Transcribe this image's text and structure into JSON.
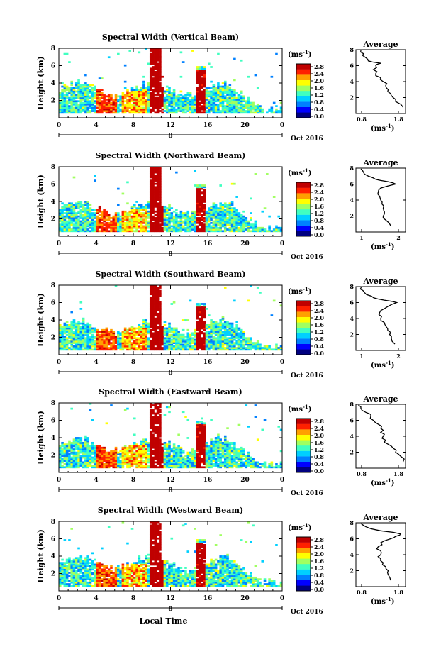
{
  "figure": {
    "xlabel": "Local Time",
    "colorbar_unit": "(ms",
    "colorbar_unit_sup": "-1",
    "colorbar_unit_close": ")",
    "colorbar_ticks": [
      "2.8",
      "2.4",
      "2.0",
      "1.6",
      "1.2",
      "0.8",
      "0.4",
      "0.0"
    ],
    "x_ticks": [
      "0",
      "4",
      "8",
      "12",
      "16",
      "20",
      "0"
    ],
    "date_day": "8",
    "date_label": "Oct 2016",
    "avg_unit": "(ms",
    "avg_unit_sup": "-1",
    "avg_unit_close": ")",
    "y_ticks": [
      "2",
      "4",
      "6",
      "8"
    ],
    "avg_y_ticks": [
      "2",
      "4",
      "6",
      "8"
    ]
  },
  "colors": {
    "colormap": [
      "#000080",
      "#0000ff",
      "#0080ff",
      "#00d0ff",
      "#40ffc0",
      "#a0ff60",
      "#ffff00",
      "#ffa000",
      "#ff2000",
      "#c00000"
    ],
    "line": "#000000"
  },
  "panels": [
    {
      "title": "Spectral Width (Vertical Beam)",
      "ylabel": "Height (km)",
      "avg_title": "Average",
      "avg_xticks": [
        "0.8",
        "1.8"
      ],
      "avg_xrange": [
        0.8,
        1.8
      ]
    },
    {
      "title": "Spectral Width (Northward Beam)",
      "ylabel": "Height (km)",
      "avg_title": "Average",
      "avg_xticks": [
        "1",
        "2"
      ],
      "avg_xrange": [
        0.6,
        2.6
      ]
    },
    {
      "title": "Spectral Width (Southward Beam)",
      "ylabel": "Height (km)",
      "avg_title": "Average",
      "avg_xticks": [
        "1",
        "2"
      ],
      "avg_xrange": [
        0.8,
        2.2
      ]
    },
    {
      "title": "Spectral Width (Eastward Beam)",
      "ylabel": "Height (km)",
      "avg_title": "Average",
      "avg_xticks": [
        "0.8",
        "1.8"
      ],
      "avg_xrange": [
        0.8,
        1.8
      ]
    },
    {
      "title": "Spectral Width (Westward Beam)",
      "ylabel": "Height (km)",
      "avg_title": "Average",
      "avg_xticks": [
        "0.8",
        "1.8"
      ],
      "avg_xrange": [
        0.8,
        1.8
      ]
    }
  ],
  "chart_data": [
    {
      "type": "heatmap",
      "title": "Spectral Width (Vertical Beam)",
      "xlabel": "",
      "ylabel": "Height (km)",
      "xlim": [
        0,
        24
      ],
      "ylim": [
        0,
        8
      ],
      "clim": [
        0.0,
        2.8
      ],
      "colorbar_label": "(ms-1)",
      "avg_profile": {
        "title": "Average",
        "xlim": [
          0.8,
          1.8
        ],
        "ylim": [
          0,
          8
        ],
        "height": [
          0.8,
          1.5,
          2,
          2.5,
          3,
          3.5,
          4,
          4.5,
          5,
          5.5,
          6,
          6.3,
          6.6,
          7,
          7.5,
          7.9
        ],
        "value": [
          1.75,
          1.6,
          1.55,
          1.5,
          1.45,
          1.4,
          1.35,
          1.3,
          1.2,
          1.15,
          1.2,
          1.3,
          1.05,
          1.0,
          0.95,
          0.9
        ]
      }
    },
    {
      "type": "heatmap",
      "title": "Spectral Width (Northward Beam)",
      "xlabel": "",
      "ylabel": "Height (km)",
      "xlim": [
        0,
        24
      ],
      "ylim": [
        0,
        8
      ],
      "clim": [
        0.0,
        2.8
      ],
      "colorbar_label": "(ms-1)",
      "avg_profile": {
        "title": "Average",
        "xlim": [
          0.6,
          2.6
        ],
        "ylim": [
          0,
          8
        ],
        "height": [
          0.8,
          1.5,
          2,
          2.5,
          3,
          3.5,
          4,
          4.5,
          5,
          5.5,
          6,
          6.3,
          6.6,
          7,
          7.5,
          7.9
        ],
        "value": [
          2.0,
          1.8,
          1.7,
          1.75,
          1.7,
          1.65,
          1.6,
          1.55,
          1.5,
          1.6,
          2.2,
          1.9,
          1.4,
          1.1,
          0.9,
          0.8
        ]
      }
    },
    {
      "type": "heatmap",
      "title": "Spectral Width (Southward Beam)",
      "xlabel": "",
      "ylabel": "Height (km)",
      "xlim": [
        0,
        24
      ],
      "ylim": [
        0,
        8
      ],
      "clim": [
        0.0,
        2.8
      ],
      "colorbar_label": "(ms-1)",
      "avg_profile": {
        "title": "Average",
        "xlim": [
          0.8,
          2.2
        ],
        "ylim": [
          0,
          8
        ],
        "height": [
          0.8,
          1.5,
          2,
          2.5,
          3,
          3.5,
          4,
          4.5,
          5,
          5.5,
          6,
          6.3,
          6.6,
          7,
          7.5,
          7.9
        ],
        "value": [
          1.9,
          1.8,
          1.75,
          1.7,
          1.65,
          1.6,
          1.5,
          1.45,
          1.5,
          1.7,
          1.95,
          1.6,
          1.3,
          1.1,
          1.0,
          0.95
        ]
      }
    },
    {
      "type": "heatmap",
      "title": "Spectral Width (Eastward Beam)",
      "xlabel": "",
      "ylabel": "Height (km)",
      "xlim": [
        0,
        24
      ],
      "ylim": [
        0,
        8
      ],
      "clim": [
        0.0,
        2.8
      ],
      "colorbar_label": "(ms-1)",
      "avg_profile": {
        "title": "Average",
        "xlim": [
          0.8,
          1.8
        ],
        "ylim": [
          0,
          8
        ],
        "height": [
          0.8,
          1.5,
          2,
          2.5,
          3,
          3.5,
          4,
          4.5,
          5,
          5.5,
          6,
          6.5,
          7,
          7.5,
          7.9
        ],
        "value": [
          1.75,
          1.7,
          1.6,
          1.55,
          1.45,
          1.4,
          1.35,
          1.3,
          1.3,
          1.25,
          1.15,
          1.1,
          1.0,
          0.9,
          0.85
        ]
      }
    },
    {
      "type": "heatmap",
      "title": "Spectral Width (Westward Beam)",
      "xlabel": "Local Time",
      "ylabel": "Height (km)",
      "xlim": [
        0,
        24
      ],
      "ylim": [
        0,
        8
      ],
      "clim": [
        0.0,
        2.8
      ],
      "colorbar_label": "(ms-1)",
      "avg_profile": {
        "title": "Average",
        "xlim": [
          0.8,
          1.8
        ],
        "ylim": [
          0,
          8
        ],
        "height": [
          0.8,
          1.5,
          2,
          2.5,
          3,
          3.5,
          4,
          4.5,
          5,
          5.5,
          6,
          6.3,
          6.6,
          7,
          7.5,
          7.9
        ],
        "value": [
          1.5,
          1.45,
          1.45,
          1.4,
          1.35,
          1.3,
          1.3,
          1.3,
          1.25,
          1.3,
          1.5,
          1.6,
          1.7,
          1.3,
          1.0,
          0.9
        ]
      }
    }
  ]
}
